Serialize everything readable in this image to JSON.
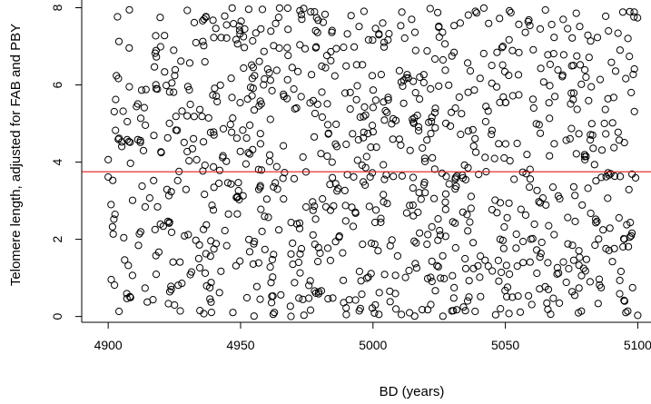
{
  "chart_data": {
    "type": "scatter",
    "title": "",
    "xlabel": "BD (years)",
    "ylabel": "Telomere length, adjusted for FAB and PBY",
    "xlim": [
      4890,
      5105
    ],
    "ylim": [
      -0.15,
      8.2
    ],
    "xticks": [
      4900,
      4950,
      5000,
      5050,
      5100
    ],
    "yticks": [
      0,
      2,
      4,
      6,
      8
    ],
    "grid": false,
    "legend": "none",
    "marker": "open-circle",
    "point_color": "#000000",
    "hline": {
      "y": 3.75,
      "color": "#e31a1c"
    },
    "n_points": 1000,
    "x_range": [
      4900,
      5100
    ],
    "y_range": [
      0,
      8
    ],
    "points_note": "approximately uniform cloud of ~1000 points over x 4900–5100, y 0–8",
    "seed": 12345
  }
}
